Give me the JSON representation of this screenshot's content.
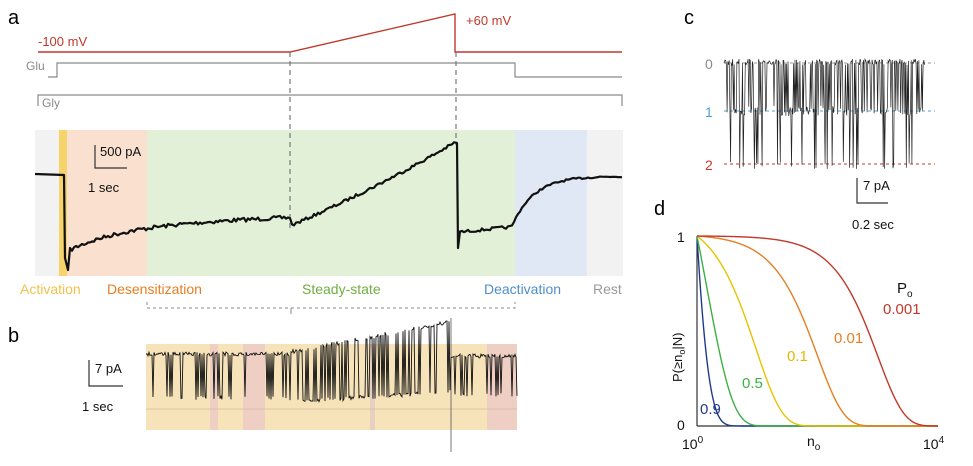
{
  "colors": {
    "red": "#c0392b",
    "grey": "#8a8a8a",
    "trace": "#111111",
    "activation": "#f2c14e",
    "desensitization": "#f08a3c",
    "steady": "#6fae3f",
    "deactivation": "#4f8fc9",
    "rest": "#9a9a9a",
    "blue_dash": "#4aa3d8",
    "red_dash": "#c0392b"
  },
  "panel_a": {
    "label": "a",
    "voltage_low": "-100 mV",
    "voltage_high": "+60 mV",
    "glu": "Glu",
    "gly": "Gly",
    "scale_current": "500 pA",
    "scale_time": "1 sec",
    "phases": [
      {
        "label": "Activation",
        "color": "#f2c14e"
      },
      {
        "label": "Desensitization",
        "color": "#e67e22"
      },
      {
        "label": "Steady-state",
        "color": "#6fae3f"
      },
      {
        "label": "Deactivation",
        "color": "#4f8fc9"
      },
      {
        "label": "Rest",
        "color": "#9a9a9a"
      }
    ]
  },
  "panel_b": {
    "label": "b",
    "scale_current": "7 pA",
    "scale_time": "1 sec"
  },
  "panel_c": {
    "label": "c",
    "levels": [
      "0",
      "1",
      "2"
    ],
    "scale_current": "7 pA",
    "scale_time": "0.2 sec"
  },
  "panel_d": {
    "label": "d",
    "ylabel": "P(≥n",
    "ylabel_sub": "o",
    "ylabel_end": "|N)",
    "xlabel": "n",
    "xlabel_sub": "o",
    "y_ticks": [
      "1",
      "0"
    ],
    "x_ticks": [
      {
        "base": "10",
        "exp": "0"
      },
      {
        "base": "10",
        "exp": "4"
      }
    ],
    "legend_title": "P",
    "legend_title_sub": "o",
    "chart_data": {
      "type": "line",
      "xscale": "log",
      "xlim": [
        1,
        10000
      ],
      "ylim": [
        0,
        1
      ],
      "series": [
        {
          "name": "0.9",
          "color": "#1f3a8a",
          "p": 0.9
        },
        {
          "name": "0.5",
          "color": "#3cb043",
          "p": 0.5
        },
        {
          "name": "0.1",
          "color": "#e6c300",
          "p": 0.1
        },
        {
          "name": "0.01",
          "color": "#e67e22",
          "p": 0.01
        },
        {
          "name": "0.001",
          "color": "#c0392b",
          "p": 0.001
        }
      ]
    }
  }
}
